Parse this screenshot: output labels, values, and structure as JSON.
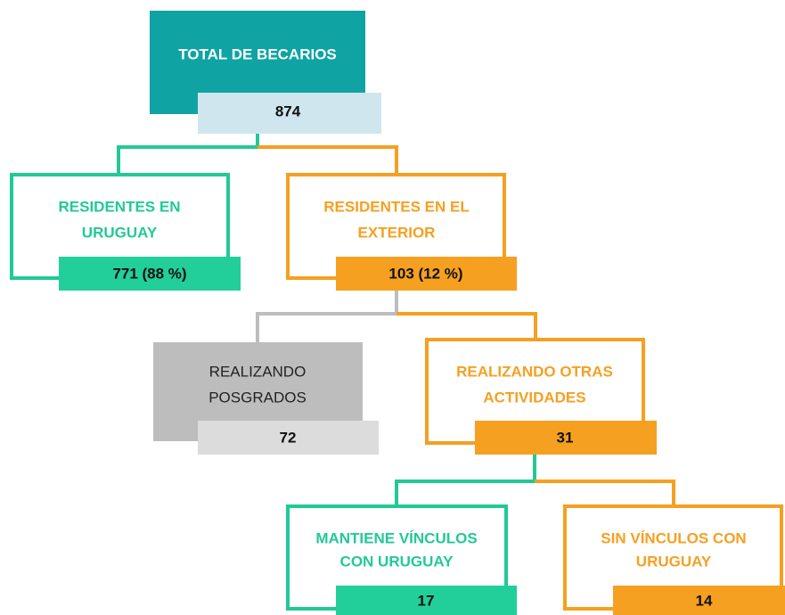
{
  "nodes": [
    {
      "label_lines": [
        "TOTAL DE BECARIOS"
      ],
      "value": "874"
    },
    {
      "label_lines": [
        "RESIDENTES EN",
        "URUGUAY"
      ],
      "value": "771 (88 %)"
    },
    {
      "label_lines": [
        "RESIDENTES EN EL",
        "EXTERIOR"
      ],
      "value": "103 (12 %)"
    },
    {
      "label_lines": [
        "REALIZANDO",
        "POSGRADOS"
      ],
      "value": "72"
    },
    {
      "label_lines": [
        "REALIZANDO OTRAS",
        "ACTIVIDADES"
      ],
      "value": "31"
    },
    {
      "label_lines": [
        "MANTIENE VÍNCULOS",
        "CON URUGUAY"
      ],
      "value": "17"
    },
    {
      "label_lines": [
        "SIN VÍNCULOS CON",
        "URUGUAY"
      ],
      "value": "14"
    }
  ]
}
